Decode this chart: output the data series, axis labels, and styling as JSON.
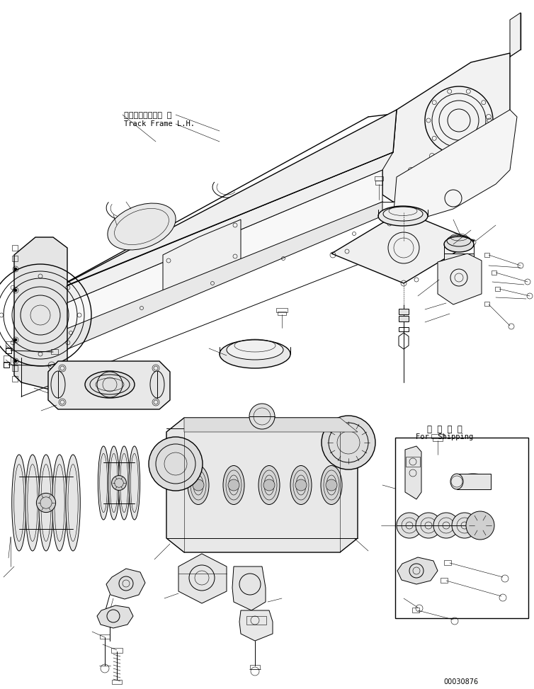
{
  "background_color": "#ffffff",
  "line_color": "#000000",
  "figure_width": 7.54,
  "figure_height": 9.73,
  "dpi": 100,
  "label_track_frame_jp": "トラックフレーム 左",
  "label_track_frame_en": "Track Frame L.H.",
  "label_shipping_jp": "運 搞 部 品",
  "label_shipping_en": "For  Shipping",
  "part_number": "00030876"
}
